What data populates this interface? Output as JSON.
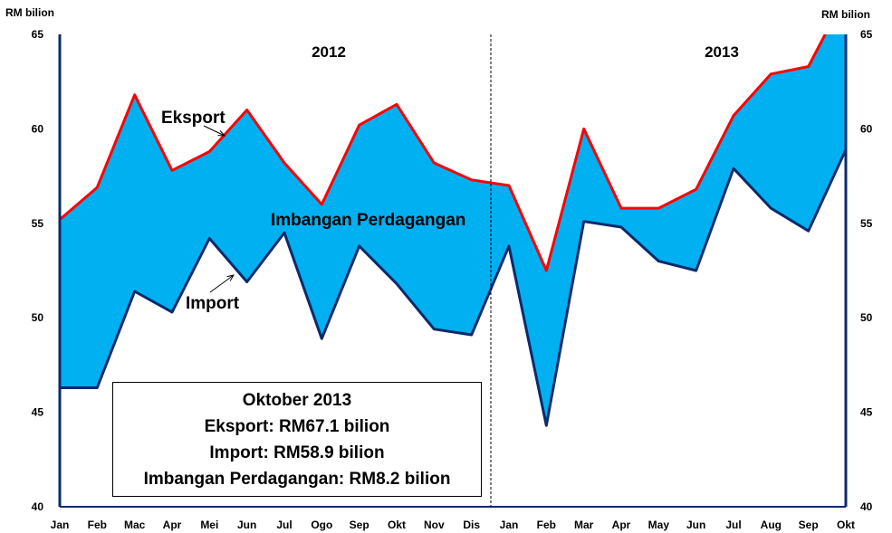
{
  "chart_data": {
    "type": "area",
    "x": [
      "Jan",
      "Feb",
      "Mac",
      "Apr",
      "Mei",
      "Jun",
      "Jul",
      "Ogo",
      "Sep",
      "Okt",
      "Nov",
      "Dis",
      "Jan",
      "Feb",
      "Mar",
      "Apr",
      "May",
      "Jun",
      "Jul",
      "Aug",
      "Sep",
      "Okt"
    ],
    "series": [
      {
        "name": "Eksport",
        "color": "#ff0000",
        "values": [
          55.2,
          56.9,
          61.8,
          57.8,
          58.8,
          61.0,
          58.2,
          56.0,
          60.2,
          61.3,
          58.2,
          57.3,
          57.0,
          52.5,
          60.0,
          55.8,
          55.8,
          56.8,
          60.7,
          62.9,
          63.3,
          67.1
        ]
      },
      {
        "name": "Import",
        "color": "#0d2a6b",
        "values": [
          46.3,
          46.3,
          51.4,
          50.3,
          54.2,
          51.9,
          54.5,
          48.9,
          53.8,
          51.8,
          49.4,
          49.1,
          53.8,
          44.3,
          55.1,
          54.8,
          53.0,
          52.5,
          57.9,
          55.8,
          54.6,
          58.9
        ]
      }
    ],
    "fill_color": "#00b0f0",
    "area_label": "Imbangan Perdagangan",
    "years": [
      "2012",
      "2013"
    ],
    "ylim": [
      40,
      65
    ],
    "yticks": [
      40,
      45,
      50,
      55,
      60,
      65
    ],
    "ylabel_left": "RM bilion",
    "ylabel_right": "RM bilion",
    "grid": false
  },
  "infobox": {
    "line1": "Oktober 2013",
    "line2": "Eksport: RM67.1 bilion",
    "line3": "Import: RM58.9 bilion",
    "line4": "Imbangan Perdagangan: RM8.2 bilion"
  }
}
